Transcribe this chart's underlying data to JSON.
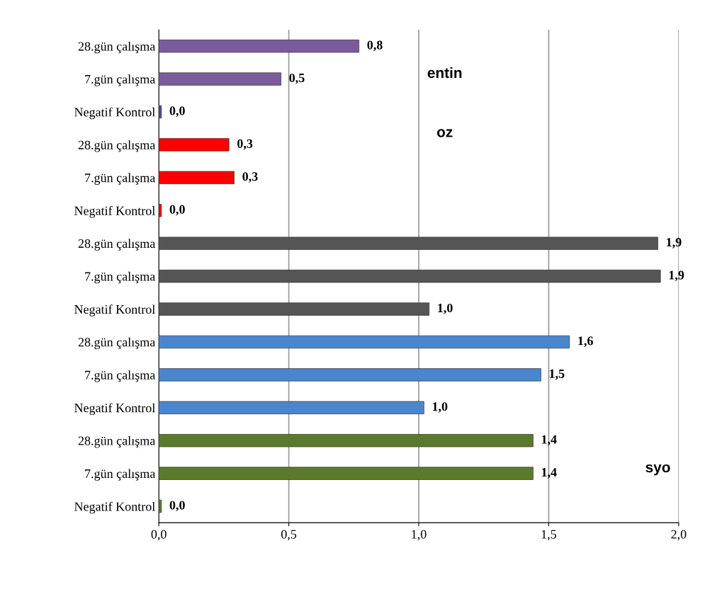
{
  "chart_data": {
    "type": "bar",
    "orientation": "horizontal",
    "categories": [
      "28.gün çalışma",
      "7.gün çalışma",
      "Negatif Kontrol",
      "28.gün çalışma",
      "7.gün çalışma",
      "Negatif Kontrol",
      "28.gün çalışma",
      "7.gün çalışma",
      "Negatif Kontrol",
      "28.gün çalışma",
      "7.gün çalışma",
      "Negatif Kontrol",
      "28.gün çalışma",
      "7.gün çalışma",
      "Negatif Kontrol"
    ],
    "values": [
      0.77,
      0.47,
      0.01,
      0.27,
      0.29,
      0.01,
      1.92,
      1.93,
      1.04,
      1.58,
      1.47,
      1.02,
      1.44,
      1.44,
      0.01
    ],
    "value_labels": [
      "0,8",
      "0,5",
      "0,0",
      "0,3",
      "0,3",
      "0,0",
      "1,9",
      "1,9",
      "1,0",
      "1,6",
      "1,5",
      "1,0",
      "1,4",
      "1,4",
      "0,0"
    ],
    "colors": [
      "#7b5b9e",
      "#7b5b9e",
      "#4b4b9e",
      "#ff0000",
      "#ff0000",
      "#ff0000",
      "#555555",
      "#555555",
      "#555555",
      "#4a86d0",
      "#4a86d0",
      "#4a86d0",
      "#5b7a2b",
      "#5b7a2b",
      "#5b7a2b"
    ],
    "xlim": [
      0,
      2
    ],
    "xticks": [
      {
        "value": 0,
        "label": "0,0"
      },
      {
        "value": 0.5,
        "label": "0,5"
      },
      {
        "value": 1,
        "label": "1,0"
      },
      {
        "value": 1.5,
        "label": "1,5"
      },
      {
        "value": 2,
        "label": "2,0"
      }
    ],
    "grid": "x",
    "annotations": [
      "entin",
      "oz",
      "syo"
    ]
  }
}
